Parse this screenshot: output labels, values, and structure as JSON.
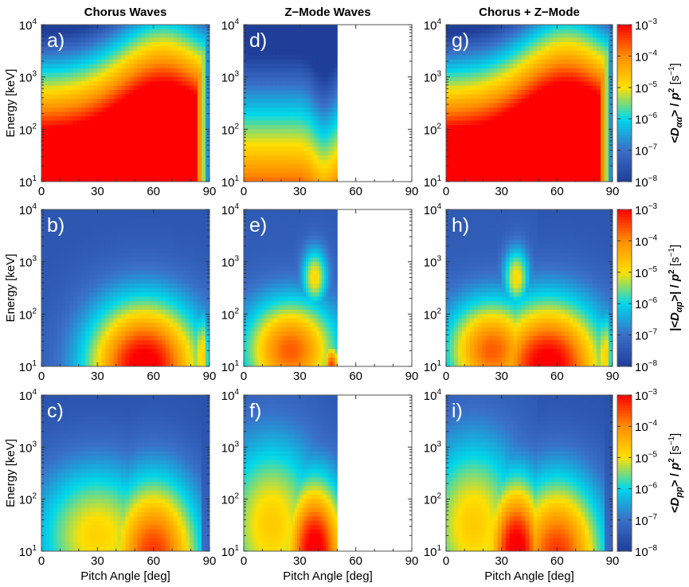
{
  "chart_data": {
    "type": "heatmap",
    "layout": "3x3 grid with per-row colorbars",
    "column_titles": [
      "Chorus Waves",
      "Z−Mode Waves",
      "Chorus + Z−Mode"
    ],
    "xlabel": "Pitch Angle [deg]",
    "ylabel": "Energy [keV]",
    "xlim": [
      0,
      90
    ],
    "xticks": [
      0,
      30,
      60,
      90
    ],
    "xtick_labels": [
      "0",
      "30",
      "60",
      "90"
    ],
    "yscale": "log",
    "ylim": [
      10,
      10000
    ],
    "ytick_exponents": [
      1,
      2,
      3,
      4
    ],
    "ytick_base": "10",
    "colormap": [
      "#1f3f99",
      "#3a6fc8",
      "#00d8ea",
      "#ffe000",
      "#ff8c00",
      "#ff0000"
    ],
    "colorbar_ticks_exponents": [
      -3,
      -4,
      -5,
      -6,
      -7,
      -8
    ],
    "colorbar_base": "10",
    "clim_log10": [
      -8,
      -3
    ],
    "rows": [
      {
        "quantity": "Daa",
        "colorbar_label_parts": [
          "<D",
          "αα",
          "> / ",
          "p",
          "2",
          " [s",
          "−1",
          "]"
        ],
        "panels": [
          {
            "label": "a)",
            "wave": "Chorus",
            "pa_max": 90
          },
          {
            "label": "d)",
            "wave": "Z-Mode",
            "pa_max": 50
          },
          {
            "label": "g)",
            "wave": "Chorus + Z-Mode",
            "pa_max": 90
          }
        ]
      },
      {
        "quantity": "Dap",
        "colorbar_label_parts": [
          "|<D",
          "αp",
          ">| / ",
          "p",
          "2",
          " [s",
          "−1",
          "]"
        ],
        "panels": [
          {
            "label": "b)",
            "wave": "Chorus",
            "pa_max": 90
          },
          {
            "label": "e)",
            "wave": "Z-Mode",
            "pa_max": 50
          },
          {
            "label": "h)",
            "wave": "Chorus + Z-Mode",
            "pa_max": 90
          }
        ]
      },
      {
        "quantity": "Dpp",
        "colorbar_label_parts": [
          "<D",
          "pp",
          "> / ",
          "p",
          "2",
          " [s",
          "−1",
          "]"
        ],
        "panels": [
          {
            "label": "c)",
            "wave": "Chorus",
            "pa_max": 90
          },
          {
            "label": "f)",
            "wave": "Z-Mode",
            "pa_max": 50
          },
          {
            "label": "i)",
            "wave": "Chorus + Z-Mode",
            "pa_max": 90
          }
        ]
      }
    ]
  }
}
